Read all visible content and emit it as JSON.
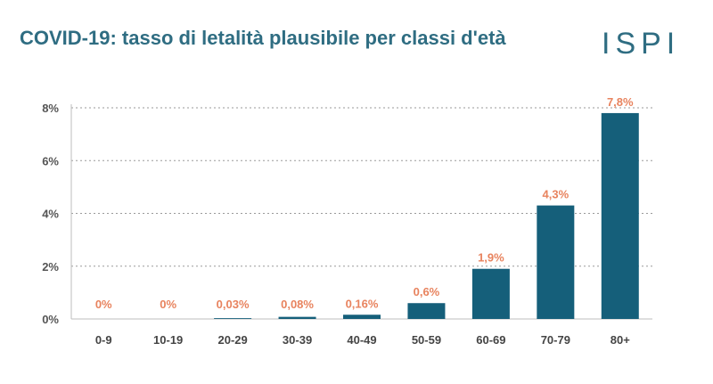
{
  "header": {
    "title": "COVID-19: tasso di letalità plausibile per classi d'età",
    "logo_text": "ISPI"
  },
  "colors": {
    "title": "#2f6d82",
    "bar": "#155f7a",
    "label": "#e8835e"
  },
  "chart_data": {
    "type": "bar",
    "title": "COVID-19: tasso di letalità plausibile per classi d'età",
    "xlabel": "",
    "ylabel": "",
    "categories": [
      "0-9",
      "10-19",
      "20-29",
      "30-39",
      "40-49",
      "50-59",
      "60-69",
      "70-79",
      "80+"
    ],
    "values": [
      0,
      0,
      0.03,
      0.08,
      0.16,
      0.6,
      1.9,
      4.3,
      7.8
    ],
    "data_labels": [
      "0%",
      "0%",
      "0,03%",
      "0,08%",
      "0,16%",
      "0,6%",
      "1,9%",
      "4,3%",
      "7,8%"
    ],
    "yticks": [
      0,
      2,
      4,
      6,
      8
    ],
    "ytick_labels": [
      "0%",
      "2%",
      "4%",
      "6%",
      "8%"
    ],
    "ylim": [
      0,
      8
    ],
    "grid": true,
    "legend": "none"
  }
}
